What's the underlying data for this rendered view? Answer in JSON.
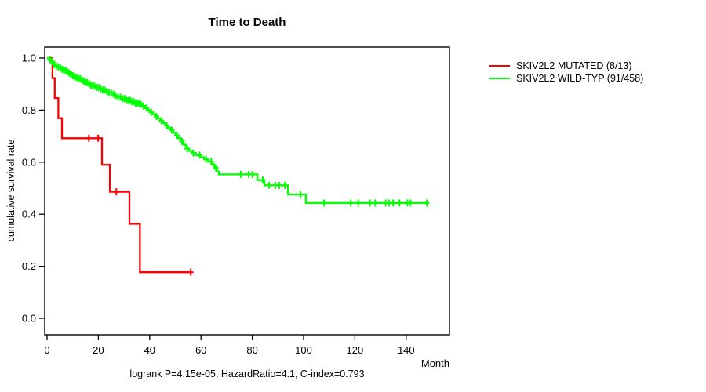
{
  "title": "Time to Death",
  "caption": "logrank P=4.15e-05, HazardRatio=4.1, C-index=0.793",
  "axes": {
    "x_label": "Month",
    "y_label": "cumulative survival rate",
    "x_ticks": [
      0,
      20,
      40,
      60,
      80,
      100,
      120,
      140
    ],
    "y_ticks": [
      0.0,
      0.2,
      0.4,
      0.6,
      0.8,
      1.0
    ]
  },
  "chart_data": {
    "type": "line",
    "subtype": "kaplan-meier-step",
    "title": "Time to Death",
    "xlabel": "Month",
    "ylabel": "cumulative survival rate",
    "xlim": [
      0,
      157
    ],
    "ylim": [
      0,
      1
    ],
    "grid": false,
    "legend_position": "right-outside",
    "caption": "logrank P=4.15e-05, HazardRatio=4.1, C-index=0.793",
    "series": [
      {
        "name": "SKIV2L2 MUTATED (8/13)",
        "color": "#ff0000",
        "points": [
          [
            0,
            1.0
          ],
          [
            2.1,
            0.923
          ],
          [
            3.0,
            0.846
          ],
          [
            4.4,
            0.769
          ],
          [
            5.8,
            0.692
          ],
          [
            21.4,
            0.59
          ],
          [
            24.5,
            0.486
          ],
          [
            32.1,
            0.363
          ],
          [
            36.2,
            0.177
          ]
        ],
        "end_month": 56.5,
        "censor_months": [
          16.3,
          19.9,
          27.0,
          56.0
        ]
      },
      {
        "name": "SKIV2L2 WILD-TYP (91/458)",
        "color": "#00ff00",
        "points": [
          [
            0,
            1.0
          ],
          [
            0.7,
            0.993
          ],
          [
            1.4,
            0.987
          ],
          [
            2.1,
            0.981
          ],
          [
            2.8,
            0.975
          ],
          [
            3.5,
            0.97
          ],
          [
            4.3,
            0.966
          ],
          [
            5.0,
            0.962
          ],
          [
            5.8,
            0.957
          ],
          [
            6.6,
            0.952
          ],
          [
            7.4,
            0.947
          ],
          [
            8.2,
            0.942
          ],
          [
            9.0,
            0.937
          ],
          [
            9.8,
            0.932
          ],
          [
            10.6,
            0.928
          ],
          [
            11.4,
            0.925
          ],
          [
            12.2,
            0.921
          ],
          [
            13.0,
            0.916
          ],
          [
            14.0,
            0.911
          ],
          [
            15.0,
            0.906
          ],
          [
            16.0,
            0.901
          ],
          [
            17.0,
            0.896
          ],
          [
            18.0,
            0.892
          ],
          [
            19.2,
            0.887
          ],
          [
            20.4,
            0.882
          ],
          [
            21.6,
            0.877
          ],
          [
            22.8,
            0.872
          ],
          [
            24.0,
            0.866
          ],
          [
            25.2,
            0.861
          ],
          [
            26.4,
            0.855
          ],
          [
            27.6,
            0.85
          ],
          [
            29.0,
            0.844
          ],
          [
            30.6,
            0.837
          ],
          [
            32.5,
            0.832
          ],
          [
            34.5,
            0.827
          ],
          [
            36.2,
            0.822
          ],
          [
            37.2,
            0.816
          ],
          [
            38.2,
            0.808
          ],
          [
            39.2,
            0.8
          ],
          [
            40.2,
            0.792
          ],
          [
            41.2,
            0.784
          ],
          [
            42.2,
            0.776
          ],
          [
            43.2,
            0.768
          ],
          [
            44.2,
            0.759
          ],
          [
            45.2,
            0.75
          ],
          [
            46.2,
            0.741
          ],
          [
            47.2,
            0.732
          ],
          [
            48.2,
            0.723
          ],
          [
            49.2,
            0.713
          ],
          [
            50.2,
            0.703
          ],
          [
            51.2,
            0.692
          ],
          [
            52.2,
            0.68
          ],
          [
            53.2,
            0.667
          ],
          [
            54.2,
            0.652
          ],
          [
            55.4,
            0.643
          ],
          [
            56.6,
            0.635
          ],
          [
            58.0,
            0.627
          ],
          [
            59.6,
            0.619
          ],
          [
            61.2,
            0.611
          ],
          [
            62.8,
            0.602
          ],
          [
            64.2,
            0.592
          ],
          [
            65.2,
            0.578
          ],
          [
            66.2,
            0.564
          ],
          [
            67.0,
            0.553
          ],
          [
            82.0,
            0.531
          ],
          [
            84.7,
            0.511
          ],
          [
            93.9,
            0.476
          ],
          [
            100.9,
            0.443
          ]
        ],
        "end_month": 148.5,
        "censor_months": [
          1.2,
          2.0,
          2.8,
          3.6,
          4.4,
          5.2,
          5.9,
          6.6,
          7.3,
          8.0,
          8.7,
          9.4,
          10.1,
          10.8,
          11.5,
          12.2,
          12.9,
          13.6,
          14.3,
          15.0,
          15.7,
          16.4,
          17.1,
          17.8,
          18.5,
          19.3,
          20.1,
          20.9,
          21.7,
          22.5,
          23.3,
          24.1,
          25.0,
          25.9,
          26.8,
          27.7,
          28.6,
          29.5,
          30.3,
          31.0,
          31.7,
          32.4,
          33.1,
          33.8,
          34.5,
          35.2,
          35.9,
          36.6,
          37.5,
          38.8,
          40.6,
          42.6,
          44.6,
          46.6,
          48.6,
          50.6,
          52.6,
          54.6,
          57.0,
          59.5,
          62.0,
          64.0,
          65.8,
          75.5,
          78.6,
          80.1,
          84.1,
          86.6,
          89.0,
          90.5,
          92.7,
          98.8,
          108.0,
          118.4,
          121.3,
          125.9,
          127.9,
          132.0,
          133.3,
          134.9,
          137.4,
          140.5,
          141.7,
          148.0
        ]
      }
    ]
  }
}
